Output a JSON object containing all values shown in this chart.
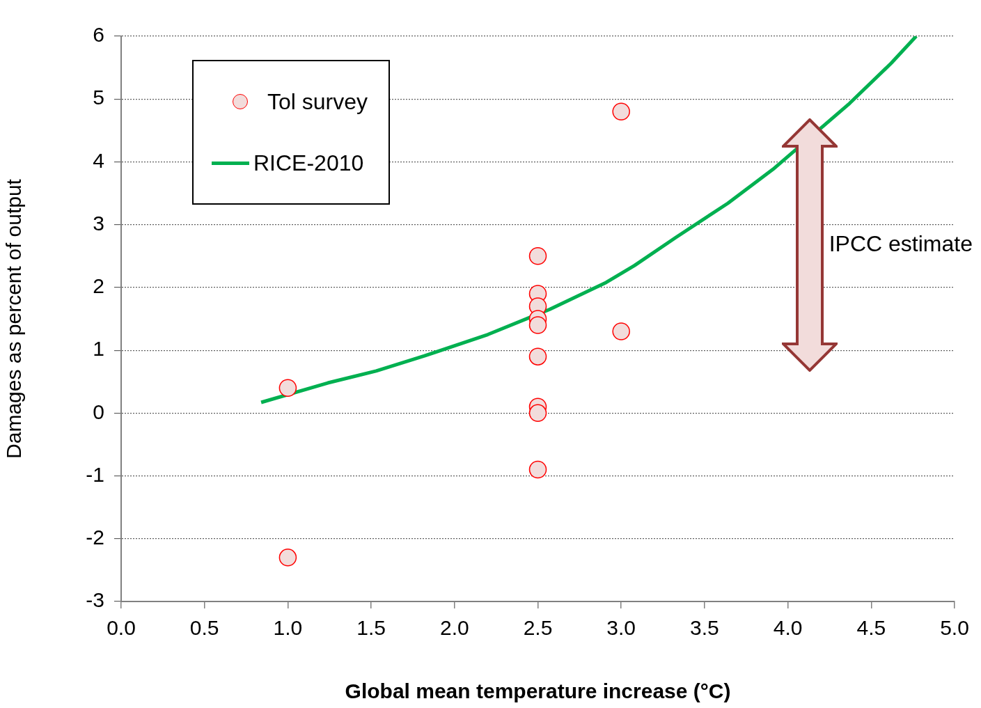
{
  "chart_data": {
    "type": "scatter",
    "xlabel": "Global mean temperature increase (°C)",
    "ylabel": "Damages as percent of output",
    "series": [
      {
        "name": "Tol survey",
        "color": "#f2dcdb",
        "x": [
          1.0,
          1.0,
          2.5,
          2.5,
          2.5,
          2.5,
          2.5,
          2.5,
          2.5,
          2.5,
          2.5,
          3.0,
          3.0
        ],
        "values": [
          0.4,
          -2.3,
          2.5,
          1.9,
          1.7,
          1.5,
          1.4,
          0.9,
          0.1,
          0.0,
          -0.9,
          4.8,
          1.3
        ]
      },
      {
        "name": "RICE-2010",
        "type": "line",
        "color": "#00b050",
        "marker": "none",
        "x": [
          0.84,
          1.24,
          1.53,
          1.82,
          2.2,
          2.57,
          2.91,
          3.08,
          3.33,
          3.64,
          3.91,
          4.37,
          4.62,
          4.77
        ],
        "values": [
          0.17,
          0.48,
          0.67,
          0.91,
          1.25,
          1.65,
          2.08,
          2.35,
          2.8,
          3.34,
          3.88,
          4.93,
          5.57,
          6.0
        ]
      }
    ],
    "xlim": [
      0,
      5
    ],
    "xticks": [
      {
        "value": 0,
        "label": "0.0"
      },
      {
        "value": 0.5,
        "label": "0.5"
      },
      {
        "value": 1,
        "label": "1.0"
      },
      {
        "value": 1.5,
        "label": "1.5"
      },
      {
        "value": 2,
        "label": "2.0"
      },
      {
        "value": 2.5,
        "label": "2.5"
      },
      {
        "value": 3,
        "label": "3.0"
      },
      {
        "value": 3.5,
        "label": "3.5"
      },
      {
        "value": 4,
        "label": "4.0"
      },
      {
        "value": 4.5,
        "label": "4.5"
      },
      {
        "value": 5,
        "label": "5.0"
      }
    ],
    "ylim": [
      -3,
      6
    ],
    "yticks": [
      -3,
      -2,
      -1,
      0,
      1,
      2,
      3,
      4,
      5,
      6
    ],
    "annotations": [
      "IPCC estimate"
    ],
    "grid": "y",
    "legend": "top left",
    "marker": "circle"
  }
}
